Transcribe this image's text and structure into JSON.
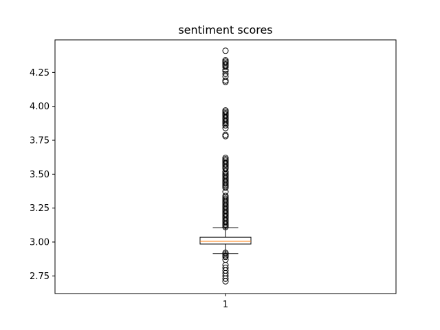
{
  "chart_data": {
    "type": "box",
    "title": "sentiment scores",
    "xlabel": "",
    "ylabel": "",
    "x_tick_labels": [
      "1"
    ],
    "y_ticks": [
      2.75,
      3.0,
      3.25,
      3.5,
      3.75,
      4.0,
      4.25
    ],
    "y_tick_labels": [
      "2.75",
      "3.00",
      "3.25",
      "3.50",
      "3.75",
      "4.00",
      "4.25"
    ],
    "ylim": [
      2.62,
      4.49
    ],
    "grid": false,
    "colors": {
      "box": "#000000",
      "median": "#ff7f0e",
      "outlier": "#000000"
    },
    "series": [
      {
        "q1": 2.985,
        "median": 3.005,
        "q3": 3.035,
        "whisker_low": 2.915,
        "whisker_high": 3.105,
        "outliers": [
          2.71,
          2.73,
          2.75,
          2.77,
          2.79,
          2.81,
          2.83,
          2.87,
          2.89,
          2.9,
          2.91,
          2.92,
          3.11,
          3.12,
          3.13,
          3.14,
          3.15,
          3.16,
          3.17,
          3.18,
          3.19,
          3.2,
          3.21,
          3.22,
          3.23,
          3.24,
          3.25,
          3.26,
          3.27,
          3.28,
          3.29,
          3.3,
          3.31,
          3.32,
          3.33,
          3.34,
          3.37,
          3.4,
          3.41,
          3.42,
          3.43,
          3.44,
          3.45,
          3.46,
          3.47,
          3.48,
          3.49,
          3.5,
          3.51,
          3.52,
          3.54,
          3.55,
          3.56,
          3.57,
          3.58,
          3.59,
          3.6,
          3.61,
          3.62,
          3.78,
          3.79,
          3.84,
          3.86,
          3.87,
          3.88,
          3.89,
          3.9,
          3.91,
          3.92,
          3.93,
          3.94,
          3.95,
          3.96,
          3.97,
          4.18,
          4.19,
          4.22,
          4.24,
          4.26,
          4.27,
          4.29,
          4.3,
          4.31,
          4.32,
          4.33,
          4.34,
          4.41
        ]
      }
    ]
  }
}
